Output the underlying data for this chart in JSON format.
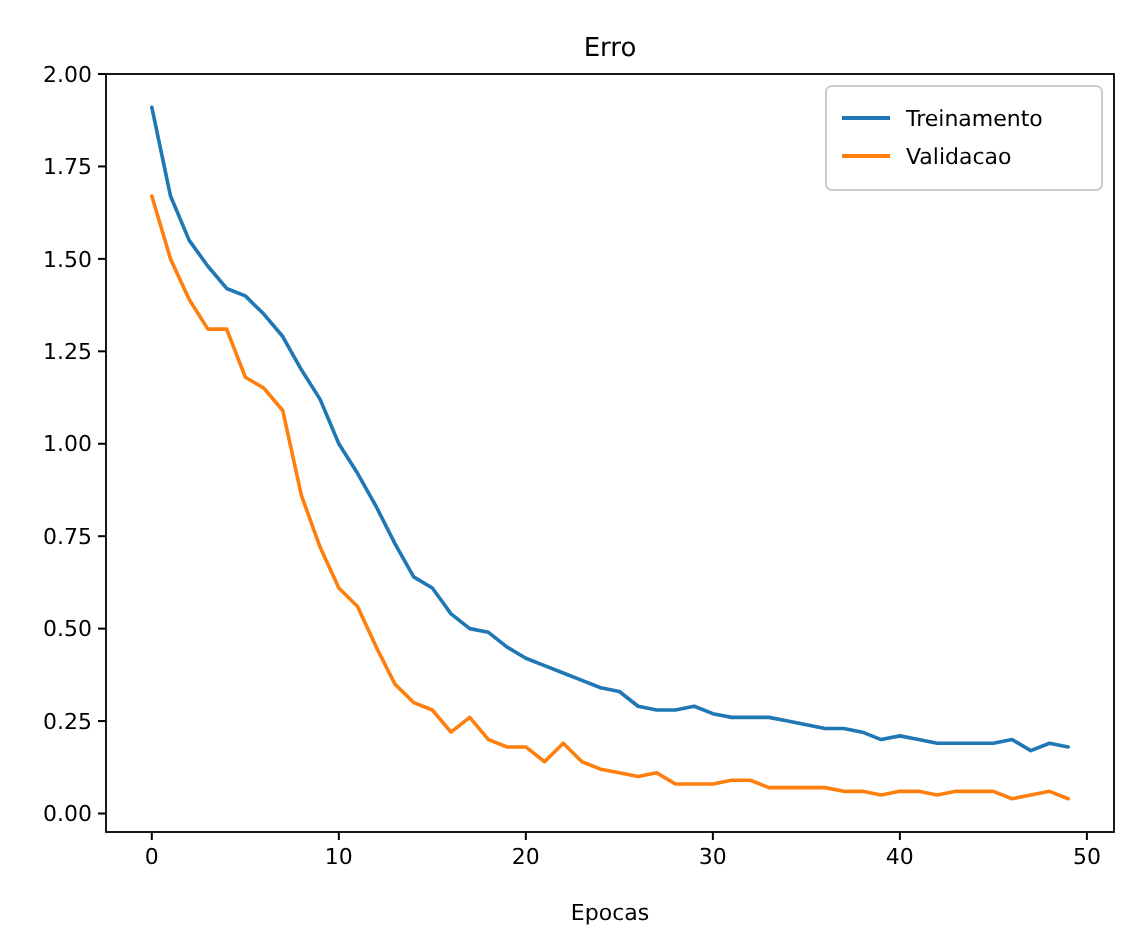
{
  "chart_data": {
    "type": "line",
    "title": "Erro",
    "xlabel": "Epocas",
    "x": [
      0,
      1,
      2,
      3,
      4,
      5,
      6,
      7,
      8,
      9,
      10,
      11,
      12,
      13,
      14,
      15,
      16,
      17,
      18,
      19,
      20,
      21,
      22,
      23,
      24,
      25,
      26,
      27,
      28,
      29,
      30,
      31,
      32,
      33,
      34,
      35,
      36,
      37,
      38,
      39,
      40,
      41,
      42,
      43,
      44,
      45,
      46,
      47,
      48,
      49
    ],
    "series": [
      {
        "name": "Treinamento",
        "color": "#1f77b4",
        "values": [
          1.91,
          1.67,
          1.55,
          1.48,
          1.42,
          1.4,
          1.35,
          1.29,
          1.2,
          1.12,
          1.0,
          0.92,
          0.83,
          0.73,
          0.64,
          0.61,
          0.54,
          0.5,
          0.49,
          0.45,
          0.42,
          0.4,
          0.38,
          0.36,
          0.34,
          0.33,
          0.29,
          0.28,
          0.28,
          0.29,
          0.27,
          0.26,
          0.26,
          0.26,
          0.25,
          0.24,
          0.23,
          0.23,
          0.22,
          0.2,
          0.21,
          0.2,
          0.19,
          0.19,
          0.19,
          0.19,
          0.2,
          0.17,
          0.19,
          0.18
        ]
      },
      {
        "name": "Validacao",
        "color": "#ff7f0e",
        "values": [
          1.67,
          1.5,
          1.39,
          1.31,
          1.31,
          1.18,
          1.15,
          1.09,
          0.86,
          0.72,
          0.61,
          0.56,
          0.45,
          0.35,
          0.3,
          0.28,
          0.22,
          0.26,
          0.2,
          0.18,
          0.18,
          0.14,
          0.19,
          0.14,
          0.12,
          0.11,
          0.1,
          0.11,
          0.08,
          0.08,
          0.08,
          0.09,
          0.09,
          0.07,
          0.07,
          0.07,
          0.07,
          0.06,
          0.06,
          0.05,
          0.06,
          0.06,
          0.05,
          0.06,
          0.06,
          0.06,
          0.04,
          0.05,
          0.06,
          0.04
        ]
      }
    ],
    "xlim": [
      -2.45,
      51.45
    ],
    "xticks": [
      0,
      10,
      20,
      30,
      40,
      50
    ],
    "ylim": [
      -0.05,
      2.0
    ],
    "yticks": [
      {
        "value": 0,
        "label": "0.00"
      },
      {
        "value": 0.25,
        "label": "0.25"
      },
      {
        "value": 0.5,
        "label": "0.50"
      },
      {
        "value": 0.75,
        "label": "0.75"
      },
      {
        "value": 1,
        "label": "1.00"
      },
      {
        "value": 1.25,
        "label": "1.25"
      },
      {
        "value": 1.5,
        "label": "1.50"
      },
      {
        "value": 1.75,
        "label": "1.75"
      },
      {
        "value": 2,
        "label": "2.00"
      }
    ],
    "legend": "top right",
    "grid": false
  }
}
